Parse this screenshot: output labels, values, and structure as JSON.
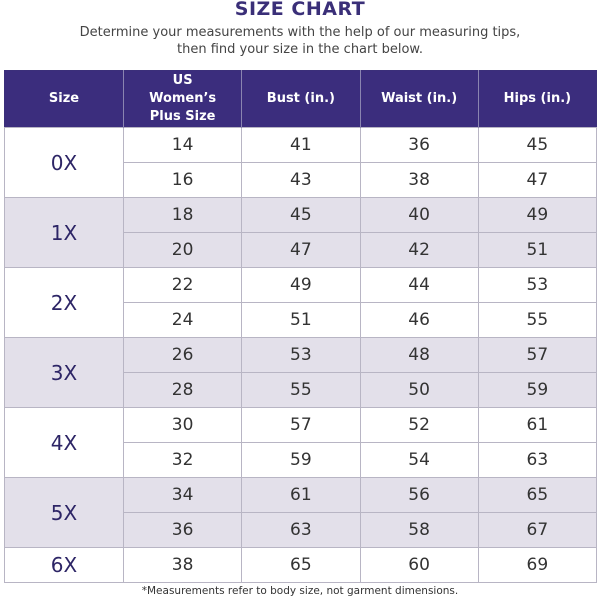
{
  "title": "SIZE CHART",
  "subtitle_line1": "Determine your measurements with the help of our measuring tips,",
  "subtitle_line2": "then find your size in the chart below.",
  "colors": {
    "header": "#3b2d7d",
    "shade": "#e3e0ea",
    "accent_text": "#3a2f78"
  },
  "headers": [
    "Size",
    "US Women’s Plus Size",
    "Bust (in.)",
    "Waist (in.)",
    "Hips (in.)"
  ],
  "groups": [
    {
      "size": "0X",
      "rows": [
        [
          "14",
          "41",
          "36",
          "45"
        ],
        [
          "16",
          "43",
          "38",
          "47"
        ]
      ]
    },
    {
      "size": "1X",
      "rows": [
        [
          "18",
          "45",
          "40",
          "49"
        ],
        [
          "20",
          "47",
          "42",
          "51"
        ]
      ]
    },
    {
      "size": "2X",
      "rows": [
        [
          "22",
          "49",
          "44",
          "53"
        ],
        [
          "24",
          "51",
          "46",
          "55"
        ]
      ]
    },
    {
      "size": "3X",
      "rows": [
        [
          "26",
          "53",
          "48",
          "57"
        ],
        [
          "28",
          "55",
          "50",
          "59"
        ]
      ]
    },
    {
      "size": "4X",
      "rows": [
        [
          "30",
          "57",
          "52",
          "61"
        ],
        [
          "32",
          "59",
          "54",
          "63"
        ]
      ]
    },
    {
      "size": "5X",
      "rows": [
        [
          "34",
          "61",
          "56",
          "65"
        ],
        [
          "36",
          "63",
          "58",
          "67"
        ]
      ]
    },
    {
      "size": "6X",
      "rows": [
        [
          "38",
          "65",
          "60",
          "69"
        ]
      ]
    }
  ],
  "footnote": "*Measurements refer to body size, not garment dimensions."
}
